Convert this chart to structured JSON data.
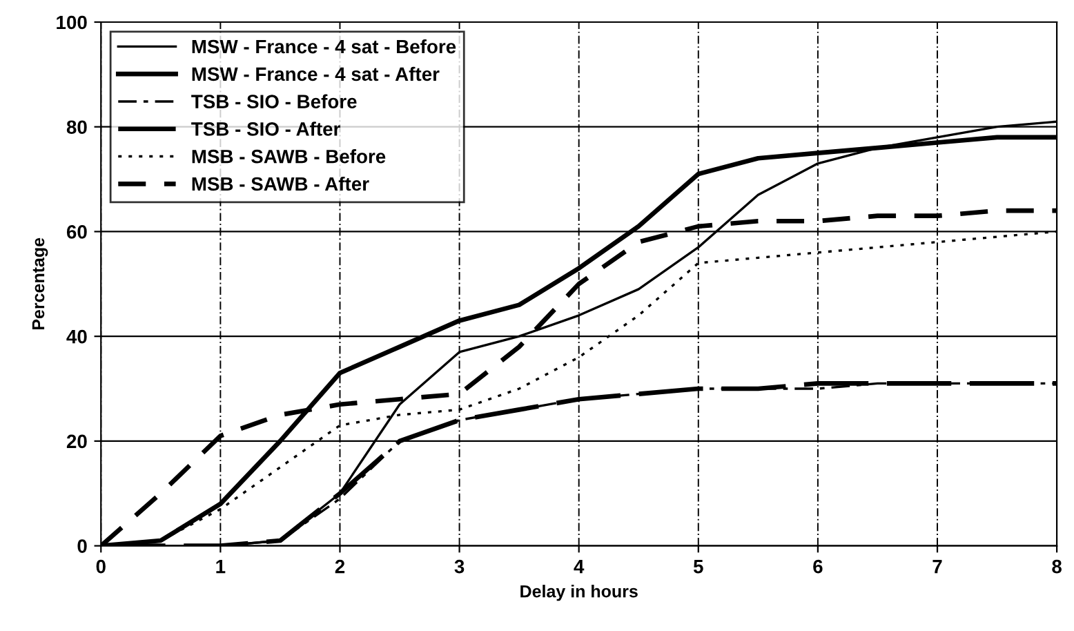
{
  "chart_data": {
    "type": "line",
    "xlabel": "Delay in hours",
    "ylabel": "Percentage",
    "x": [
      0,
      0.5,
      1,
      1.5,
      2,
      2.5,
      3,
      3.5,
      4,
      4.5,
      5,
      5.5,
      6,
      6.5,
      7,
      7.5,
      8
    ],
    "series": [
      {
        "name": "MSW - France - 4 sat - Before",
        "color": "#000000",
        "line_style": "solid",
        "values": [
          0,
          0,
          0,
          1,
          10,
          27,
          37,
          40,
          44,
          49,
          57,
          67,
          73,
          76,
          78,
          80,
          81
        ]
      },
      {
        "name": "MSW - France - 4 sat - After",
        "color": "#000000",
        "line_style": "solid",
        "values": [
          0,
          1,
          8,
          20,
          33,
          38,
          43,
          46,
          53,
          61,
          71,
          74,
          75,
          76,
          77,
          78,
          78
        ]
      },
      {
        "name": "TSB - SIO - Before",
        "color": "#000000",
        "line_style": "dashed",
        "values": [
          0,
          0,
          0,
          1,
          9,
          20,
          24,
          26,
          28,
          29,
          30,
          30,
          30,
          31,
          31,
          31,
          31
        ]
      },
      {
        "name": "TSB - SIO - After",
        "color": "#000000",
        "line_style": "dashed",
        "values": [
          0,
          0,
          0,
          1,
          10,
          20,
          24,
          26,
          28,
          29,
          30,
          30,
          31,
          31,
          31,
          31,
          31
        ]
      },
      {
        "name": "MSB - SAWB - Before",
        "color": "#000000",
        "line_style": "dotted",
        "values": [
          0,
          1,
          7,
          15,
          23,
          25,
          26,
          30,
          36,
          44,
          54,
          55,
          56,
          57,
          58,
          59,
          60
        ]
      },
      {
        "name": "MSB - SAWB - After",
        "color": "#000000",
        "line_style": "dashed",
        "values": [
          0,
          10,
          21,
          25,
          27,
          28,
          29,
          38,
          50,
          58,
          61,
          62,
          62,
          63,
          63,
          64,
          64
        ]
      }
    ],
    "xlim": [
      0,
      8
    ],
    "xticks": [
      0,
      1,
      2,
      3,
      4,
      5,
      6,
      7,
      8
    ],
    "ylim": [
      0,
      100
    ],
    "yticks": [
      0,
      20,
      40,
      60,
      80,
      100
    ],
    "grid": true,
    "legend": "top left",
    "marker": "none"
  }
}
